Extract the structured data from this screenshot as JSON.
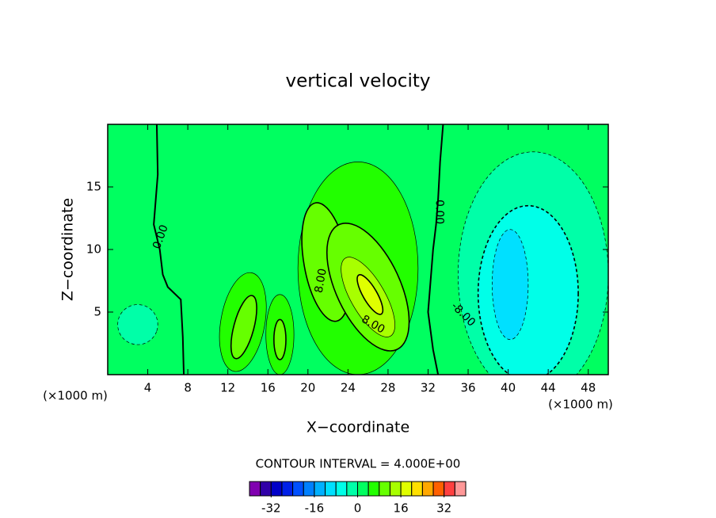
{
  "chart_data": {
    "type": "contour",
    "title": "vertical velocity",
    "x_label": "X−coordinate",
    "y_label": "Z−coordinate",
    "x_unit": "(×1000 m)",
    "y_unit": "(×1000 m)",
    "xlim": [
      0,
      50
    ],
    "ylim": [
      0,
      20
    ],
    "xticks": [
      4,
      8,
      12,
      16,
      20,
      24,
      28,
      32,
      36,
      40,
      44,
      48
    ],
    "yticks": [
      5,
      10,
      15
    ],
    "background_value": 2,
    "regions": [
      {
        "value": 4,
        "cx": 25,
        "cy": 8.5,
        "rx": 6,
        "ry": 8.5,
        "angle": 0
      },
      {
        "value": 4,
        "cx": 13.5,
        "cy": 4.2,
        "rx": 2.2,
        "ry": 4,
        "angle": -10
      },
      {
        "value": 4,
        "cx": 17.2,
        "cy": 3.2,
        "rx": 1.4,
        "ry": 3.2,
        "angle": 0
      },
      {
        "value": 8,
        "cx": 21.8,
        "cy": 9,
        "rx": 2.2,
        "ry": 4.8,
        "angle": 10
      },
      {
        "value": 8,
        "cx": 26,
        "cy": 7,
        "rx": 3.2,
        "ry": 5.5,
        "angle": 25
      },
      {
        "value": 8,
        "cx": 13.6,
        "cy": 3.8,
        "rx": 1,
        "ry": 2.6,
        "angle": -15
      },
      {
        "value": 8,
        "cx": 17.2,
        "cy": 2.8,
        "rx": 0.6,
        "ry": 1.6,
        "angle": 0
      },
      {
        "value": 12,
        "cx": 26,
        "cy": 6.2,
        "rx": 1.7,
        "ry": 3.6,
        "angle": 30
      },
      {
        "value": 16,
        "cx": 26.2,
        "cy": 6.4,
        "rx": 0.7,
        "ry": 1.8,
        "angle": 30
      },
      {
        "value": -4,
        "cx": 42.5,
        "cy": 8,
        "rx": 7.5,
        "ry": 9.8,
        "angle": 0
      },
      {
        "value": -4,
        "cx": 3,
        "cy": 4,
        "rx": 2,
        "ry": 1.6,
        "angle": -20
      },
      {
        "value": -8,
        "cx": 42,
        "cy": 6.5,
        "rx": 5,
        "ry": 7,
        "angle": 0
      },
      {
        "value": -12,
        "cx": 40.2,
        "cy": 7.2,
        "rx": 1.8,
        "ry": 4.4,
        "angle": 0
      }
    ],
    "lines": [
      {
        "value": 0,
        "x": [
          4.9,
          5.0,
          4.6,
          5.2,
          5.5,
          6.0,
          7.3,
          7.5,
          7.6
        ],
        "y": [
          20,
          16,
          12,
          10,
          8,
          7,
          6,
          3,
          0
        ]
      },
      {
        "value": 0,
        "x": [
          33.5,
          33.2,
          33.0,
          32.8,
          32.5,
          32.2,
          32.0,
          32.5,
          33.0
        ],
        "y": [
          20,
          17,
          14,
          12,
          10,
          7,
          5,
          2,
          0
        ]
      }
    ],
    "annotations": [
      {
        "text": "0.00",
        "x": 5.3,
        "y": 11,
        "angle": 70
      },
      {
        "text": "0.00",
        "x": 33.1,
        "y": 13,
        "angle": -90
      },
      {
        "text": "8.00",
        "x": 21.3,
        "y": 7.5,
        "angle": 80
      },
      {
        "text": "8.00",
        "x": 26.5,
        "y": 4,
        "angle": -30
      },
      {
        "text": "-8.00",
        "x": 35.5,
        "y": 4.8,
        "angle": -45
      }
    ],
    "contour_interval": "CONTOUR INTERVAL = 4.000E+00",
    "levels": [
      -40,
      -36,
      -32,
      -28,
      -24,
      -20,
      -16,
      -12,
      -8,
      -4,
      0,
      4,
      8,
      12,
      16,
      20,
      24,
      28,
      32,
      36,
      40
    ],
    "colors": [
      "#8000b0",
      "#3000a8",
      "#0000c8",
      "#0020e8",
      "#0050ff",
      "#0080ff",
      "#00b0ff",
      "#00e0ff",
      "#00ffe8",
      "#00ffa8",
      "#00ff60",
      "#22ff00",
      "#66ff00",
      "#a8ff00",
      "#e0ff00",
      "#ffe000",
      "#ffa800",
      "#ff6000",
      "#ff4040",
      "#ff9898"
    ],
    "colorbar_ticks": [
      -32,
      -16,
      0,
      16,
      32
    ]
  }
}
